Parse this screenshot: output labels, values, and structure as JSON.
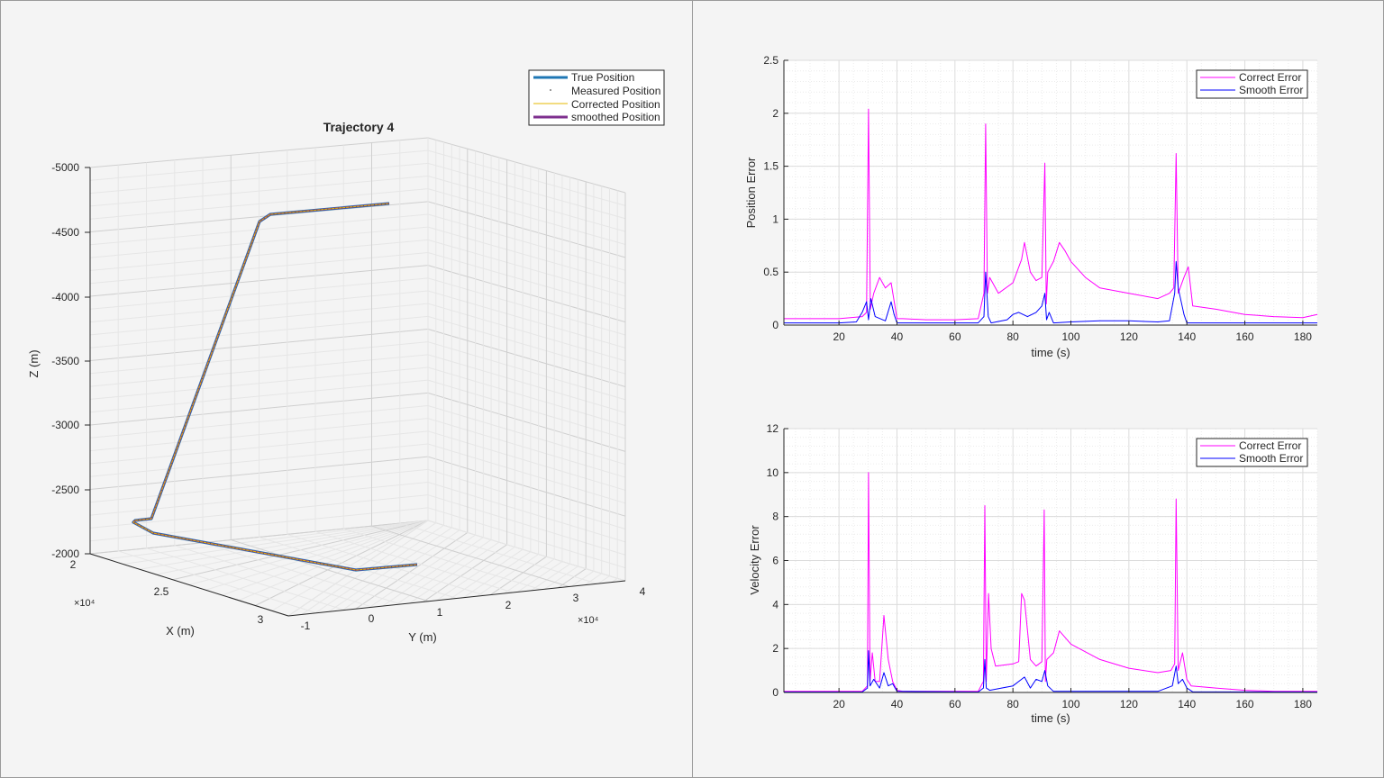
{
  "figure": {
    "colors": {
      "true": "#1f77b4",
      "measured": "#555555",
      "corrected": "#e6b800",
      "smoothed": "#7e2f8e",
      "correct_error": "#ff00ff",
      "smooth_error": "#0000ff",
      "axis": "#262626",
      "grid_major": "#dcdcdc",
      "grid_minor": "#ececec"
    }
  },
  "chart_data": [
    {
      "id": "trajectory",
      "type": "line3d",
      "title": "Trajectory 4",
      "xlabel": "X (m)",
      "ylabel": "Y (m)",
      "zlabel": "Z (m)",
      "x_ticks": [
        "2",
        "2.5",
        "3"
      ],
      "x_exponent": "×10⁴",
      "y_ticks": [
        "-1",
        "0",
        "1",
        "2",
        "3",
        "4"
      ],
      "y_exponent": "×10⁴",
      "z_ticks": [
        "-5000",
        "-4500",
        "-4000",
        "-3500",
        "-3000",
        "-2500",
        "-2000"
      ],
      "legend": {
        "position": "top-right",
        "entries": [
          "True Position",
          "Measured Position",
          "Corrected Position",
          "smoothed Position"
        ]
      },
      "grid": true
    },
    {
      "id": "position-error",
      "type": "line",
      "xlabel": "time (s)",
      "ylabel": "Position Error",
      "xlim": [
        1,
        185
      ],
      "ylim": [
        0,
        2.5
      ],
      "x_ticks": [
        20,
        40,
        60,
        80,
        100,
        120,
        140,
        160,
        180
      ],
      "y_ticks": [
        0,
        0.5,
        1,
        1.5,
        2,
        2.5
      ],
      "y_tick_labels": [
        "0",
        "0.5",
        "1",
        "1.5",
        "2",
        "2.5"
      ],
      "grid": true,
      "legend": {
        "position": "top-right",
        "entries": [
          "Correct Error",
          "Smooth Error"
        ]
      },
      "series": [
        {
          "name": "Correct Error",
          "x": [
            1,
            10,
            20,
            28,
            29.5,
            30.2,
            30.8,
            32,
            34,
            36,
            38,
            40,
            42,
            50,
            60,
            68,
            70,
            70.6,
            71.2,
            72,
            75,
            80,
            83,
            84,
            86,
            88,
            90,
            91,
            91.5,
            92,
            94,
            96,
            98,
            100,
            105,
            110,
            120,
            130,
            134,
            135.5,
            136.3,
            137,
            139,
            140.5,
            142,
            150,
            160,
            170,
            180,
            185
          ],
          "y": [
            0.06,
            0.06,
            0.06,
            0.08,
            0.12,
            2.04,
            0.15,
            0.3,
            0.45,
            0.35,
            0.4,
            0.06,
            0.06,
            0.05,
            0.05,
            0.06,
            0.3,
            1.9,
            0.3,
            0.45,
            0.3,
            0.4,
            0.62,
            0.78,
            0.5,
            0.42,
            0.45,
            1.53,
            0.2,
            0.5,
            0.6,
            0.78,
            0.7,
            0.6,
            0.45,
            0.35,
            0.3,
            0.25,
            0.3,
            0.35,
            1.62,
            0.3,
            0.45,
            0.55,
            0.18,
            0.15,
            0.1,
            0.08,
            0.07,
            0.1
          ]
        },
        {
          "name": "Smooth Error",
          "x": [
            1,
            20,
            26,
            28,
            29.5,
            30.2,
            31,
            32.5,
            36,
            38,
            39,
            40,
            42,
            60,
            68,
            70,
            70.6,
            71.5,
            72.5,
            78,
            80,
            82,
            85,
            88,
            90,
            91,
            91.6,
            92.5,
            94,
            100,
            110,
            120,
            130,
            134,
            135.8,
            136.3,
            137,
            139,
            140,
            142,
            150,
            160,
            170,
            180,
            185
          ],
          "y": [
            0.02,
            0.02,
            0.03,
            0.12,
            0.22,
            0.05,
            0.25,
            0.08,
            0.04,
            0.22,
            0.1,
            0.02,
            0.02,
            0.02,
            0.02,
            0.08,
            0.5,
            0.08,
            0.02,
            0.05,
            0.1,
            0.12,
            0.08,
            0.12,
            0.18,
            0.3,
            0.05,
            0.12,
            0.02,
            0.03,
            0.04,
            0.04,
            0.03,
            0.04,
            0.3,
            0.6,
            0.35,
            0.1,
            0.02,
            0.02,
            0.02,
            0.02,
            0.02,
            0.02,
            0.02
          ]
        }
      ]
    },
    {
      "id": "velocity-error",
      "type": "line",
      "xlabel": "time (s)",
      "ylabel": "Velocity Error",
      "xlim": [
        1,
        185
      ],
      "ylim": [
        0,
        12
      ],
      "x_ticks": [
        20,
        40,
        60,
        80,
        100,
        120,
        140,
        160,
        180
      ],
      "y_ticks": [
        0,
        2,
        4,
        6,
        8,
        10,
        12
      ],
      "y_tick_labels": [
        "0",
        "2",
        "4",
        "6",
        "8",
        "10",
        "12"
      ],
      "grid": true,
      "legend": {
        "position": "top-right",
        "entries": [
          "Correct Error",
          "Smooth Error"
        ]
      },
      "series": [
        {
          "name": "Correct Error",
          "x": [
            1,
            28,
            29.8,
            30.2,
            30.7,
            31.5,
            32.5,
            34,
            35.5,
            37,
            38.5,
            40,
            42,
            68,
            69.8,
            70.3,
            70.8,
            71.6,
            72.5,
            74,
            80,
            82,
            83,
            84,
            86,
            88,
            90,
            90.8,
            91.2,
            91.7,
            94,
            96,
            100,
            110,
            120,
            130,
            134.5,
            135.8,
            136.3,
            137,
            138.5,
            140,
            141.5,
            150,
            160,
            170,
            185
          ],
          "y": [
            0.05,
            0.05,
            0.3,
            10,
            0.5,
            1.8,
            0.5,
            0.5,
            3.5,
            1.5,
            0.5,
            0.1,
            0.05,
            0.05,
            0.5,
            8.5,
            0.5,
            4.5,
            2,
            1.2,
            1.3,
            1.4,
            4.5,
            4.2,
            1.5,
            1.2,
            1.4,
            8.3,
            0.5,
            1.5,
            1.8,
            2.8,
            2.2,
            1.5,
            1.1,
            0.9,
            1.0,
            1.3,
            8.8,
            1.0,
            1.8,
            0.6,
            0.3,
            0.2,
            0.1,
            0.05,
            0.05
          ]
        },
        {
          "name": "Smooth Error",
          "x": [
            1,
            28,
            29.8,
            30.2,
            30.7,
            32,
            34,
            35.5,
            37,
            38.5,
            40,
            68,
            69.8,
            70.3,
            70.8,
            72,
            80,
            84,
            86,
            88,
            90,
            91,
            92,
            94,
            100,
            130,
            135,
            136.3,
            137,
            138.5,
            140,
            142,
            185
          ],
          "y": [
            0.02,
            0.02,
            0.2,
            1.9,
            0.3,
            0.6,
            0.2,
            0.9,
            0.3,
            0.4,
            0.05,
            0.02,
            0.2,
            1.5,
            0.2,
            0.1,
            0.3,
            0.7,
            0.2,
            0.6,
            0.5,
            1.0,
            0.3,
            0.05,
            0.05,
            0.05,
            0.3,
            1.2,
            0.4,
            0.6,
            0.2,
            0.03,
            0.02
          ]
        }
      ]
    }
  ]
}
